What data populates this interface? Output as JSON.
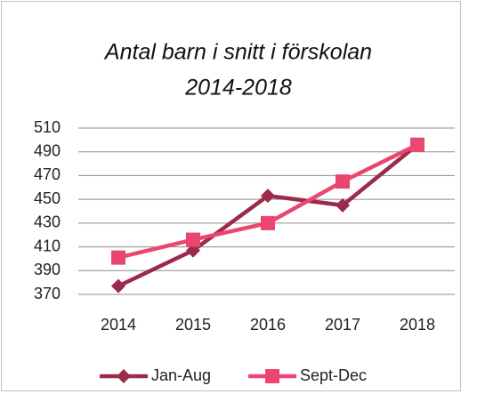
{
  "chart_data": {
    "type": "line",
    "title": [
      "Antal barn i snitt i förskolan",
      "2014-2018"
    ],
    "categories": [
      "2014",
      "2015",
      "2016",
      "2017",
      "2018"
    ],
    "series": [
      {
        "name": "Jan-Aug",
        "color": "#9b2a4b",
        "marker": "diamond",
        "values": [
          377,
          407,
          453,
          445,
          496
        ]
      },
      {
        "name": "Sept-Dec",
        "color": "#ea4670",
        "marker": "square",
        "values": [
          401,
          416,
          430,
          465,
          496
        ]
      }
    ],
    "ylim": [
      370,
      510
    ],
    "yticks": [
      370,
      390,
      410,
      430,
      450,
      470,
      490,
      510
    ],
    "grid": true,
    "legend": "bottom"
  }
}
